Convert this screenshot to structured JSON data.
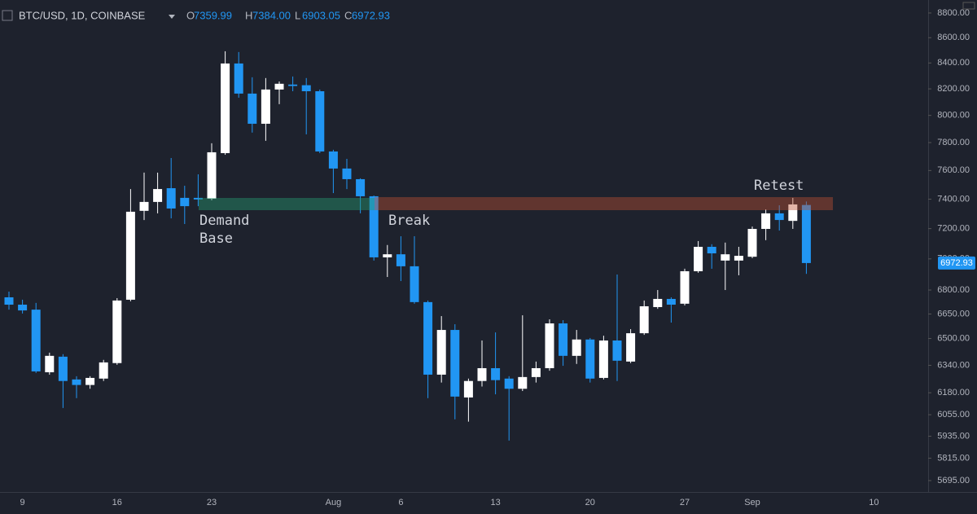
{
  "chart_data": {
    "type": "candlestick",
    "title": "BTC/USD, 1D, COINBASE",
    "ohlc_legend": [
      {
        "label": "O",
        "value": "7359.99"
      },
      {
        "label": "H",
        "value": "7384.00"
      },
      {
        "label": "L",
        "value": "6903.05"
      },
      {
        "label": "C",
        "value": "6972.93"
      }
    ],
    "annotations": [
      "Demand",
      "Base",
      "Break",
      "Retest"
    ],
    "categories": [
      null,
      "9",
      null,
      null,
      null,
      null,
      null,
      null,
      "16",
      null,
      null,
      null,
      null,
      null,
      null,
      "23",
      null,
      null,
      null,
      null,
      null,
      null,
      null,
      null,
      "Aug",
      null,
      null,
      null,
      null,
      "6",
      null,
      null,
      null,
      null,
      null,
      null,
      "13",
      null,
      null,
      null,
      null,
      null,
      null,
      "20",
      null,
      null,
      null,
      null,
      null,
      null,
      "27",
      null,
      null,
      null,
      null,
      "Sep",
      null,
      null,
      null,
      null,
      null,
      null,
      null,
      null,
      "10"
    ],
    "open": [
      6754,
      6708,
      6677,
      6299,
      6391,
      6257,
      6225,
      6262,
      6353,
      6739,
      7320,
      7381,
      7476,
      7409,
      7409,
      7403,
      7724,
      8396,
      8164,
      7938,
      8195,
      8233,
      8228,
      8182,
      7736,
      7614,
      7539,
      7420,
      7010,
      7030,
      6952,
      6724,
      6285,
      6552,
      6153,
      6248,
      6323,
      6262,
      6203,
      6271,
      6323,
      6592,
      6396,
      6494,
      6266,
      6488,
      6362,
      6532,
      6693,
      6744,
      6714,
      6920,
      7079,
      6989,
      6989,
      7014,
      7198,
      7303,
      7252,
      7359.99,
      null,
      null,
      null,
      null,
      null
    ],
    "high": [
      6790,
      6739,
      6719,
      6415,
      6406,
      6276,
      6276,
      6372,
      6749,
      7470,
      7585,
      7585,
      7689,
      7493,
      7573,
      7795,
      8492,
      8486,
      8289,
      8283,
      8257,
      8295,
      8283,
      8195,
      7748,
      7683,
      7545,
      7425,
      7091,
      7149,
      7149,
      6734,
      6637,
      6587,
      6262,
      6488,
      6537,
      6276,
      6642,
      6362,
      6617,
      6612,
      6552,
      6503,
      6517,
      6899,
      6557,
      6734,
      6800,
      6754,
      6936,
      7117,
      7096,
      7107,
      7079,
      7214,
      7330,
      7358,
      7409,
      7384,
      null,
      null,
      null,
      null,
      null
    ],
    "low": [
      6677,
      6653,
      6295,
      6285,
      6093,
      6149,
      6203,
      6248,
      6343,
      6729,
      7258,
      7303,
      7269,
      7231,
      7352,
      7392,
      7712,
      8133,
      7873,
      7813,
      8084,
      8182,
      7860,
      7724,
      7442,
      7470,
      7303,
      6989,
      6883,
      6857,
      6714,
      6149,
      6239,
      6029,
      6016,
      6216,
      6171,
      5911,
      6190,
      6239,
      6308,
      6337,
      6348,
      6239,
      6257,
      6248,
      6353,
      6522,
      6682,
      6597,
      6703,
      6910,
      6936,
      6800,
      6894,
      7005,
      7123,
      7187,
      7198,
      6903.05,
      null,
      null,
      null,
      null,
      null
    ],
    "close": [
      6708,
      6672,
      6304,
      6396,
      6248,
      6225,
      6266,
      6357,
      6734,
      7314,
      7381,
      7470,
      7336,
      7352,
      7398,
      7730,
      8396,
      8164,
      7938,
      8195,
      8239,
      8222,
      8182,
      7736,
      7614,
      7539,
      7420,
      7010,
      7030,
      6952,
      6724,
      6285,
      6552,
      6158,
      6248,
      6323,
      6253,
      6203,
      6271,
      6323,
      6592,
      6396,
      6494,
      6262,
      6488,
      6367,
      6532,
      6698,
      6744,
      6708,
      6920,
      7079,
      7036,
      7030,
      7020,
      7198,
      7303,
      7258,
      7364,
      6972.93,
      null,
      null,
      null,
      null,
      null
    ],
    "up_color": "#ffffff",
    "down_color": "#2196f3",
    "log_scale": true,
    "ylim": [
      5639,
      8907
    ],
    "yticks": [
      {
        "value": 8800,
        "label": "8800.00"
      },
      {
        "value": 8600,
        "label": "8600.00"
      },
      {
        "value": 8400,
        "label": "8400.00"
      },
      {
        "value": 8200,
        "label": "8200.00"
      },
      {
        "value": 8000,
        "label": "8000.00"
      },
      {
        "value": 7800,
        "label": "7800.00"
      },
      {
        "value": 7600,
        "label": "7600.00"
      },
      {
        "value": 7400,
        "label": "7400.00"
      },
      {
        "value": 7200,
        "label": "7200.00"
      },
      {
        "value": 7000,
        "label": "7000.00"
      },
      {
        "value": 6800,
        "label": "6800.00"
      },
      {
        "value": 6650,
        "label": "6650.00"
      },
      {
        "value": 6500,
        "label": "6500.00"
      },
      {
        "value": 6340,
        "label": "6340.00"
      },
      {
        "value": 6180,
        "label": "6180.00"
      },
      {
        "value": 6055,
        "label": "6055.00"
      },
      {
        "value": 5935,
        "label": "5935.00"
      },
      {
        "value": 5815,
        "label": "5815.00"
      },
      {
        "value": 5695,
        "label": "5695.00"
      }
    ],
    "grid": false
  }
}
